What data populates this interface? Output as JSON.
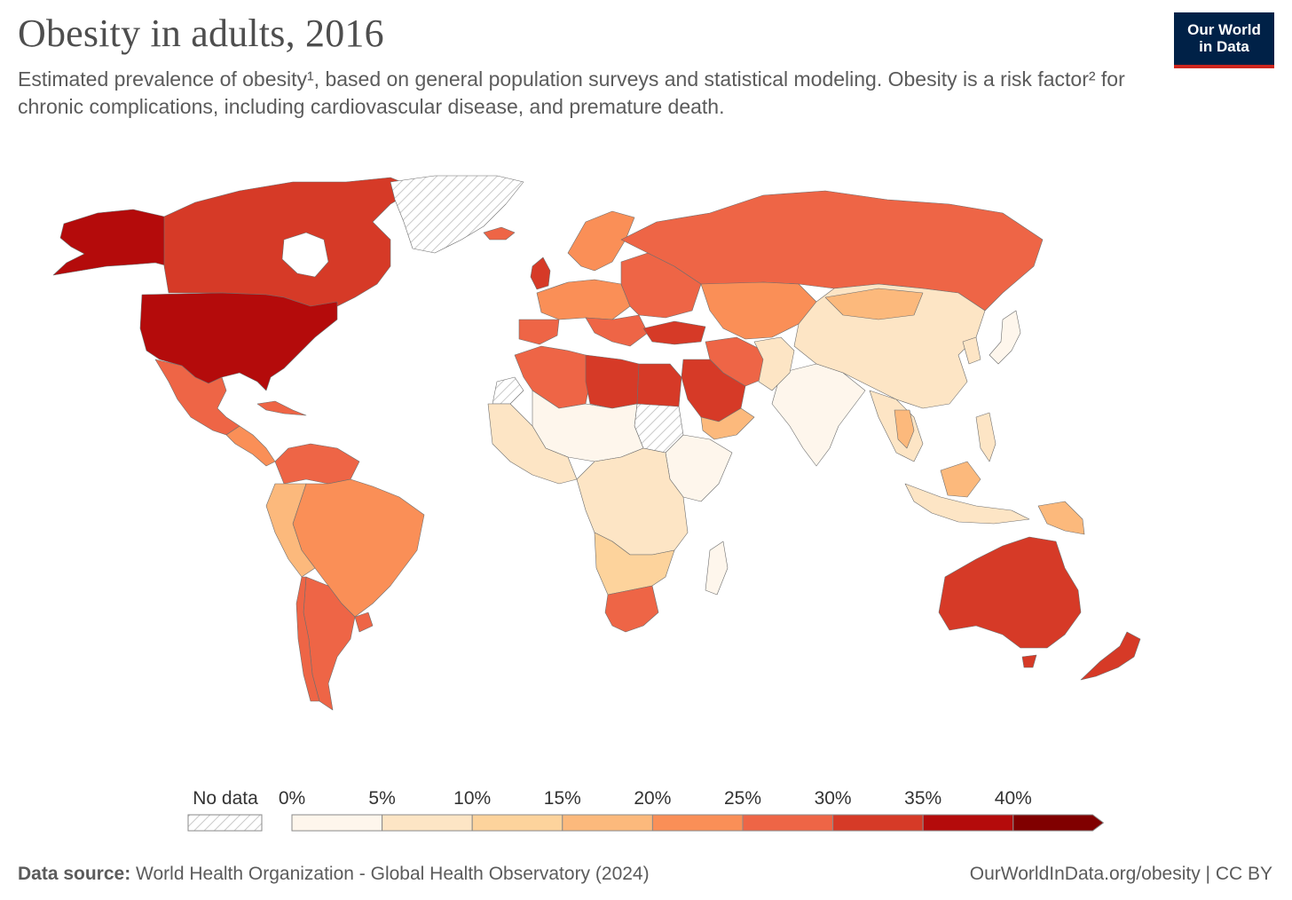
{
  "header": {
    "title": "Obesity in adults, 2016",
    "subtitle": "Estimated prevalence of obesity¹, based on general population surveys and statistical modeling. Obesity is a risk factor² for chronic complications, including cardiovascular disease, and premature death."
  },
  "logo": {
    "line1": "Our World",
    "line2": "in Data",
    "bg": "#002147",
    "accent": "#ce261e"
  },
  "legend": {
    "no_data_label": "No data",
    "ticks": [
      "0%",
      "5%",
      "10%",
      "15%",
      "20%",
      "25%",
      "30%",
      "35%",
      "40%"
    ],
    "colors": [
      "#fef6ec",
      "#fde5c5",
      "#fdd39c",
      "#fcb97c",
      "#fa8f57",
      "#ee6546",
      "#d63a27",
      "#b40b0b",
      "#800000"
    ]
  },
  "footer": {
    "source_label": "Data source:",
    "source_text": " World Health Organization - Global Health Observatory (2024)",
    "credit": "OurWorldInData.org/obesity | CC BY"
  }
}
